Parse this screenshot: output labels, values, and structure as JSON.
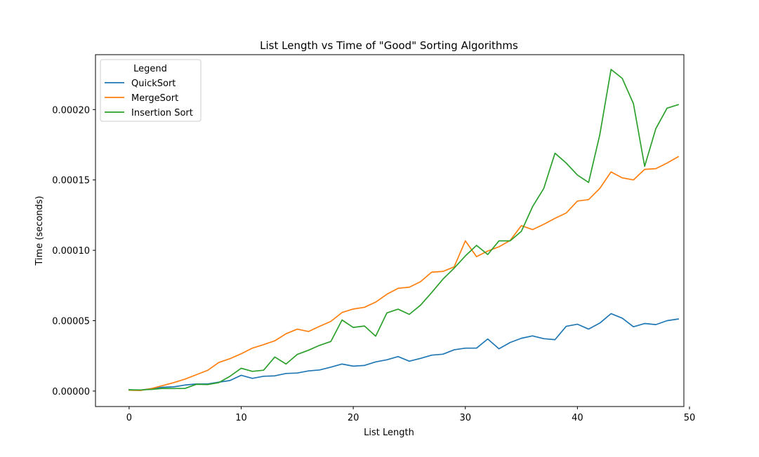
{
  "chart_data": {
    "type": "line",
    "title": "List Length vs Time of \"Good\" Sorting Algorithms",
    "xlabel": "List Length",
    "ylabel": "Time (seconds)",
    "xlim": [
      -3,
      49.5
    ],
    "ylim": [
      -1.1e-05,
      0.000239
    ],
    "x_ticks": [
      0,
      10,
      20,
      30,
      40,
      50
    ],
    "x_tick_labels": [
      "0",
      "10",
      "20",
      "30",
      "40",
      "50"
    ],
    "y_ticks": [
      0,
      5e-05,
      0.0001,
      0.00015,
      0.0002
    ],
    "y_tick_labels": [
      "0.00000",
      "0.00005",
      "0.00010",
      "0.00015",
      "0.00020"
    ],
    "grid": false,
    "legend": {
      "title": "Legend",
      "placement": "upper left"
    },
    "x": [
      0,
      1,
      2,
      3,
      4,
      5,
      6,
      7,
      8,
      9,
      10,
      11,
      12,
      13,
      14,
      15,
      16,
      17,
      18,
      19,
      20,
      21,
      22,
      23,
      24,
      25,
      26,
      27,
      28,
      29,
      30,
      31,
      32,
      33,
      34,
      35,
      36,
      37,
      38,
      39,
      40,
      41,
      42,
      43,
      44,
      45,
      46,
      47,
      48,
      49
    ],
    "series": [
      {
        "name": "QuickSort",
        "color": "#1f77b4",
        "values": [
          9e-07,
          6e-07,
          1.8e-06,
          2.7e-06,
          3e-06,
          4.3e-06,
          5e-06,
          5e-06,
          6.3e-06,
          7.5e-06,
          1.12e-05,
          9e-06,
          1.05e-05,
          1.08e-05,
          1.25e-05,
          1.28e-05,
          1.43e-05,
          1.5e-05,
          1.7e-05,
          1.92e-05,
          1.77e-05,
          1.82e-05,
          2.07e-05,
          2.22e-05,
          2.45e-05,
          2.12e-05,
          2.32e-05,
          2.55e-05,
          2.62e-05,
          2.93e-05,
          3.05e-05,
          3.05e-05,
          3.7e-05,
          3e-05,
          3.45e-05,
          3.75e-05,
          3.92e-05,
          3.72e-05,
          3.65e-05,
          4.6e-05,
          4.75e-05,
          4.4e-05,
          4.83e-05,
          5.5e-05,
          5.18e-05,
          4.57e-05,
          4.8e-05,
          4.72e-05,
          5e-05,
          5.12e-05
        ]
      },
      {
        "name": "MergeSort",
        "color": "#ff7f0e",
        "values": [
          6e-07,
          4e-07,
          1.8e-06,
          3.9e-06,
          6e-06,
          8.5e-06,
          1.16e-05,
          1.47e-05,
          2.03e-05,
          2.3e-05,
          2.65e-05,
          3.05e-05,
          3.3e-05,
          3.57e-05,
          4.07e-05,
          4.4e-05,
          4.23e-05,
          4.6e-05,
          4.95e-05,
          5.58e-05,
          5.83e-05,
          5.95e-05,
          6.32e-05,
          6.88e-05,
          7.3e-05,
          7.38e-05,
          7.77e-05,
          8.45e-05,
          8.5e-05,
          8.82e-05,
          0.0001067,
          9.55e-05,
          9.95e-05,
          0.0001025,
          0.000107,
          0.0001175,
          0.0001147,
          0.0001185,
          0.0001227,
          0.0001265,
          0.000135,
          0.000136,
          0.000144,
          0.0001557,
          0.0001515,
          0.00015,
          0.0001575,
          0.000158,
          0.000162,
          0.0001665
        ]
      },
      {
        "name": "Insertion Sort",
        "color": "#2ca02c",
        "values": [
          9e-07,
          8e-07,
          1.2e-06,
          1.9e-06,
          1.8e-06,
          1.9e-06,
          4.8e-06,
          4.6e-06,
          6e-06,
          1.05e-05,
          1.62e-05,
          1.4e-05,
          1.48e-05,
          2.42e-05,
          1.92e-05,
          2.6e-05,
          2.9e-05,
          3.25e-05,
          3.52e-05,
          5.05e-05,
          4.52e-05,
          4.62e-05,
          3.9e-05,
          5.55e-05,
          5.82e-05,
          5.45e-05,
          6.1e-05,
          7e-05,
          7.95e-05,
          8.73e-05,
          9.6e-05,
          0.0001035,
          9.7e-05,
          0.0001067,
          0.0001067,
          0.0001135,
          0.000131,
          0.000144,
          0.000169,
          0.000162,
          0.0001535,
          0.0001482,
          0.0001822,
          0.0002285,
          0.0002222,
          0.0002042,
          0.0001597,
          0.0001865,
          0.000201,
          0.0002035
        ]
      }
    ]
  }
}
